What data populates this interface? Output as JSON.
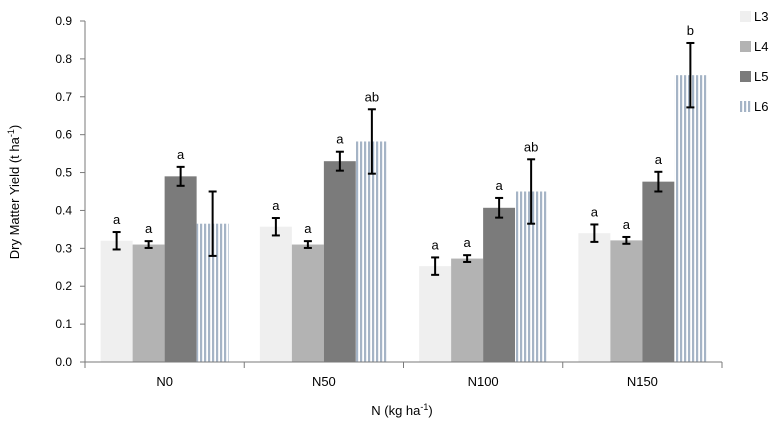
{
  "chart_data": {
    "type": "bar",
    "title": "",
    "xlabel": "N (kg ha-1)",
    "xlabel_base": "N (kg ha",
    "xlabel_sup": "-1",
    "xlabel_tail": ")",
    "ylabel": "Dry Matter Yield (t ha-1)",
    "ylabel_base": "Dry Matter Yield (t ha",
    "ylabel_sup": "-1",
    "ylabel_tail": ")",
    "ylim": [
      0,
      0.9
    ],
    "yticks": [
      "0.0",
      "0.1",
      "0.2",
      "0.3",
      "0.4",
      "0.5",
      "0.6",
      "0.7",
      "0.8",
      "0.9"
    ],
    "grid": false,
    "legend_position": "top-right",
    "categories": [
      "N0",
      "N50",
      "N100",
      "N150"
    ],
    "series": [
      {
        "name": "L3",
        "color": "#efefef",
        "pattern": "solid",
        "values": [
          0.32,
          0.357,
          0.253,
          0.34
        ],
        "errors": [
          0.023,
          0.023,
          0.023,
          0.023
        ],
        "letters": [
          "a",
          "a",
          "a",
          "a"
        ]
      },
      {
        "name": "L4",
        "color": "#b3b3b3",
        "pattern": "solid",
        "values": [
          0.31,
          0.31,
          0.273,
          0.321
        ],
        "errors": [
          0.009,
          0.009,
          0.009,
          0.009
        ],
        "letters": [
          "a",
          "a",
          "a",
          "a"
        ]
      },
      {
        "name": "L5",
        "color": "#7b7b7b",
        "pattern": "solid",
        "values": [
          0.49,
          0.53,
          0.407,
          0.476
        ],
        "errors": [
          0.025,
          0.025,
          0.026,
          0.026
        ],
        "letters": [
          "a",
          "a",
          "a",
          "a"
        ]
      },
      {
        "name": "L6",
        "color": "#a5b4c6",
        "pattern": "vertical-stripes",
        "values": [
          0.365,
          0.582,
          0.45,
          0.757
        ],
        "errors": [
          0.085,
          0.085,
          0.085,
          0.085
        ],
        "letters": [
          "",
          "ab",
          "ab",
          "b"
        ]
      }
    ]
  }
}
